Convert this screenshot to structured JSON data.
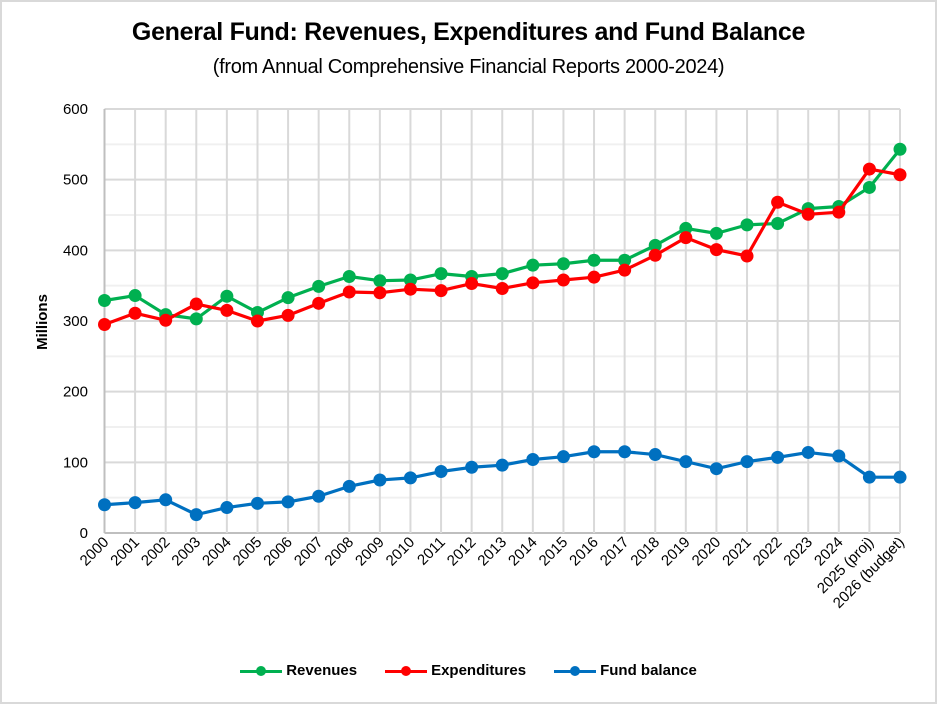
{
  "chart_data": {
    "type": "line",
    "title": "General Fund: Revenues, Expenditures and Fund Balance",
    "subtitle": "(from Annual Comprehensive Financial Reports 2000-2024)",
    "xlabel": "",
    "ylabel": "Millions",
    "ylim": [
      0,
      600
    ],
    "yticks": [
      0,
      100,
      200,
      300,
      400,
      500,
      600
    ],
    "ytick_labels": [
      "0",
      "100",
      "200",
      "300",
      "400",
      "500",
      "600"
    ],
    "minor_gridlines_every": 50,
    "grid": true,
    "legend_position": "bottom",
    "categories": [
      "2000",
      "2001",
      "2002",
      "2003",
      "2004",
      "2005",
      "2006",
      "2007",
      "2008",
      "2009",
      "2010",
      "2011",
      "2012",
      "2013",
      "2014",
      "2015",
      "2016",
      "2017",
      "2018",
      "2019",
      "2020",
      "2021",
      "2022",
      "2023",
      "2024",
      "2025 (proj)",
      "2026 (budget)"
    ],
    "series": [
      {
        "name": "Revenues",
        "color": "#00b050",
        "values": [
          329,
          336,
          309,
          303,
          335,
          312,
          333,
          349,
          363,
          357,
          358,
          367,
          363,
          367,
          379,
          381,
          386,
          386,
          407,
          431,
          424,
          436,
          438,
          459,
          462,
          489,
          543
        ]
      },
      {
        "name": "Expenditures",
        "color": "#ff0000",
        "values": [
          295,
          311,
          301,
          324,
          315,
          300,
          308,
          325,
          341,
          340,
          345,
          343,
          353,
          346,
          354,
          358,
          362,
          372,
          393,
          418,
          401,
          392,
          468,
          451,
          454,
          515,
          507
        ]
      },
      {
        "name": "Fund balance",
        "color": "#0070c0",
        "values": [
          40,
          43,
          47,
          26,
          36,
          42,
          44,
          52,
          66,
          75,
          78,
          87,
          93,
          96,
          104,
          108,
          115,
          115,
          111,
          101,
          91,
          101,
          107,
          114,
          109,
          79,
          79
        ]
      }
    ]
  }
}
